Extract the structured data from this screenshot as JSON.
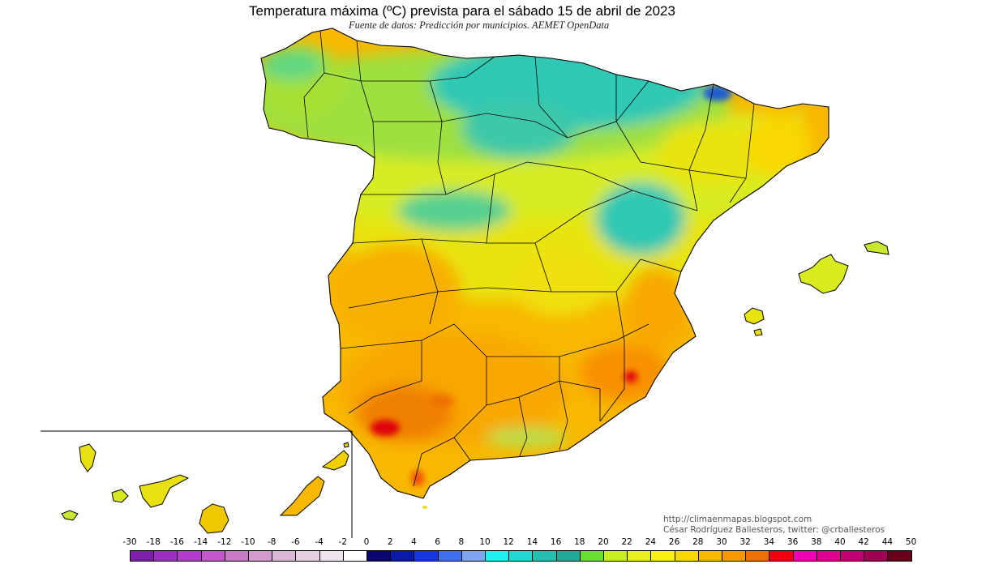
{
  "title": "Temperatura máxima (ºC) prevista para el sábado 15 de abril de 2023",
  "subtitle": "Fuente de datos: Predicción por municipios. AEMET OpenData",
  "credits": {
    "url": "http://climaenmapas.blogspot.com",
    "author": "César Rodríguez Ballesteros, twitter: @crballesteros"
  },
  "legend": {
    "ticks": [
      "-30",
      "-18",
      "-16",
      "-14",
      "-12",
      "-10",
      "-8",
      "-6",
      "-4",
      "-2",
      "0",
      "2",
      "4",
      "6",
      "8",
      "10",
      "12",
      "14",
      "16",
      "18",
      "20",
      "22",
      "24",
      "26",
      "28",
      "30",
      "32",
      "34",
      "36",
      "38",
      "40",
      "42",
      "44",
      "50"
    ],
    "colors": [
      "#7d1fa8",
      "#9b2fc0",
      "#b33ccc",
      "#c457c9",
      "#c97ac4",
      "#d39acd",
      "#dcb6d6",
      "#e6cfe2",
      "#efe5ee",
      "#ffffff",
      "#0a0870",
      "#0a1aa8",
      "#1537e0",
      "#3f6ff0",
      "#7ea6f0",
      "#1ef0f0",
      "#20d8d0",
      "#22c0b0",
      "#20a898",
      "#68e030",
      "#c8f020",
      "#e8f020",
      "#f8f010",
      "#f8d800",
      "#f8b800",
      "#f89800",
      "#f07000",
      "#f00010",
      "#f000b0",
      "#e00090",
      "#c00070",
      "#a00050",
      "#6a0018"
    ]
  },
  "map": {
    "regions": [
      "iberian-peninsula",
      "mallorca",
      "menorca",
      "ibiza",
      "formentera",
      "canary-islands"
    ],
    "colors": {
      "water": "#ffffff",
      "north": "#2ec8b4",
      "north_coast": "#20d8d0",
      "pyrenees": "#1a5fd0",
      "meseta": "#d8ec20",
      "center": "#e8e410",
      "south": "#f8b800",
      "southwest": "#f89800",
      "hot": "#f07000",
      "very_hot": "#e00010",
      "balearics": "#d8ec20",
      "canaries": "#e8e010"
    }
  }
}
